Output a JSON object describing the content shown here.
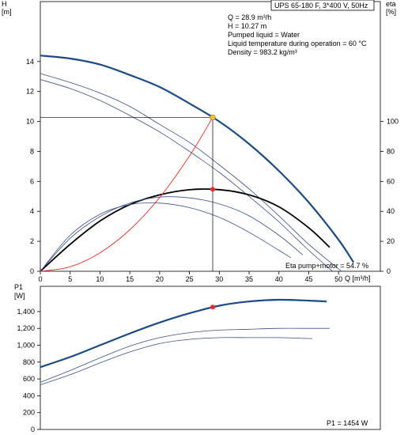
{
  "chart_data": [
    {
      "type": "line",
      "title": "UPS 65-180 F, 3*400 V, 50Hz",
      "ylabel_left": "H",
      "ylabel_left_unit": "[m]",
      "ylabel_right": "eta",
      "ylabel_right_unit": "[%]",
      "xlabel": "Q [m³/h]",
      "xlim": [
        0,
        57
      ],
      "ylim_left": [
        0,
        18
      ],
      "ylim_right": [
        0,
        180
      ],
      "xticks": [
        "0",
        "5",
        "10",
        "15",
        "20",
        "25",
        "30",
        "35",
        "40",
        "45",
        "50"
      ],
      "yticks_left": [
        "0",
        "2",
        "4",
        "6",
        "8",
        "10",
        "12",
        "14"
      ],
      "yticks_right": [
        "0",
        "20",
        "40",
        "60",
        "80",
        "100"
      ],
      "grid": false,
      "info_lines": [
        "Q = 28.9 m³/h",
        "H = 10.27 m",
        "Pumped liquid = Water",
        "Liquid temperature during operation = 60 °C",
        "Density = 983.2 kg/m³"
      ],
      "annotations": {
        "eta_label": "Eta pump+motor = 54.7 %"
      },
      "duty_point": {
        "q": 28.9,
        "h": 10.27,
        "eta": 54.7
      },
      "colors": {
        "main": "#1a4a8a",
        "thin": "#3a4e8a",
        "eta": "#000000",
        "system": "#ee2a2a",
        "marker": "#ee2a2a",
        "marker_head": "#f2c23a"
      },
      "series": [
        {
          "kind": "head",
          "style": "main",
          "x": [
            0,
            5,
            10,
            15,
            20,
            25,
            30,
            35,
            40,
            45,
            50,
            52.5
          ],
          "y": [
            14.4,
            14.2,
            13.8,
            13.1,
            12.3,
            11.2,
            10.0,
            8.5,
            6.7,
            4.6,
            2.1,
            0.6
          ]
        },
        {
          "kind": "head",
          "style": "thin",
          "x": [
            0,
            5,
            10,
            15,
            20,
            25,
            30,
            35,
            40,
            45,
            50.5
          ],
          "y": [
            13.2,
            12.6,
            11.9,
            11.0,
            9.8,
            8.6,
            7.1,
            5.5,
            3.7,
            1.8,
            0
          ]
        },
        {
          "kind": "head",
          "style": "thin",
          "x": [
            0,
            5,
            10,
            15,
            20,
            25,
            30,
            35,
            40,
            45,
            49
          ],
          "y": [
            12.8,
            12.2,
            11.4,
            10.4,
            9.3,
            8.0,
            6.6,
            5.0,
            3.3,
            1.4,
            0
          ]
        },
        {
          "kind": "eta",
          "style": "eta",
          "x": [
            0,
            5,
            10,
            15,
            20,
            25,
            30,
            35,
            40,
            45,
            48.5
          ],
          "y": [
            0,
            18.0,
            33.5,
            44.5,
            51.0,
            54.4,
            54.5,
            51.0,
            43.0,
            29.0,
            16.0
          ]
        },
        {
          "kind": "eta",
          "style": "thin",
          "x": [
            0,
            5,
            10,
            15,
            20,
            25,
            30,
            35,
            40,
            44
          ],
          "y": [
            0,
            22.0,
            36.5,
            45.5,
            49.5,
            49.0,
            45.0,
            37.0,
            24.0,
            11.0
          ]
        },
        {
          "kind": "eta",
          "style": "thin",
          "x": [
            0,
            5,
            10,
            15,
            20,
            25,
            30,
            35,
            40,
            42
          ],
          "y": [
            0,
            24.0,
            38.0,
            44.5,
            45.5,
            42.5,
            36.0,
            26.0,
            14.0,
            9.0
          ]
        },
        {
          "kind": "system",
          "style": "system",
          "x": [
            0,
            5,
            10,
            15,
            20,
            25,
            28.9
          ],
          "y": [
            0,
            0.3,
            1.23,
            2.77,
            4.92,
            7.69,
            10.27
          ]
        }
      ]
    },
    {
      "type": "line",
      "ylabel": "P1",
      "ylabel_unit": "[W]",
      "xlim": [
        0,
        57
      ],
      "ylim": [
        0,
        1700
      ],
      "yticks": [
        "0",
        "200",
        "400",
        "600",
        "800",
        "1,000",
        "1,200",
        "1,400"
      ],
      "ytick_values": [
        0,
        200,
        400,
        600,
        800,
        1000,
        1200,
        1400
      ],
      "annotations": {
        "p1_label": "P1 = 1454 W"
      },
      "duty_point": {
        "q": 28.9,
        "p1": 1454
      },
      "series": [
        {
          "style": "main",
          "x": [
            0,
            5,
            10,
            15,
            20,
            25,
            30,
            35,
            40,
            45,
            48
          ],
          "y": [
            740,
            860,
            1000,
            1140,
            1270,
            1380,
            1470,
            1520,
            1540,
            1530,
            1520
          ]
        },
        {
          "style": "thin",
          "x": [
            0,
            5,
            10,
            15,
            20,
            25,
            30,
            35,
            40,
            45,
            48.5
          ],
          "y": [
            560,
            700,
            850,
            990,
            1090,
            1150,
            1180,
            1190,
            1200,
            1200,
            1200
          ]
        },
        {
          "style": "thin",
          "x": [
            0,
            5,
            10,
            15,
            20,
            25,
            30,
            35,
            40,
            45,
            45.5
          ],
          "y": [
            530,
            650,
            790,
            920,
            1020,
            1070,
            1090,
            1090,
            1090,
            1080,
            1080
          ]
        }
      ]
    }
  ]
}
